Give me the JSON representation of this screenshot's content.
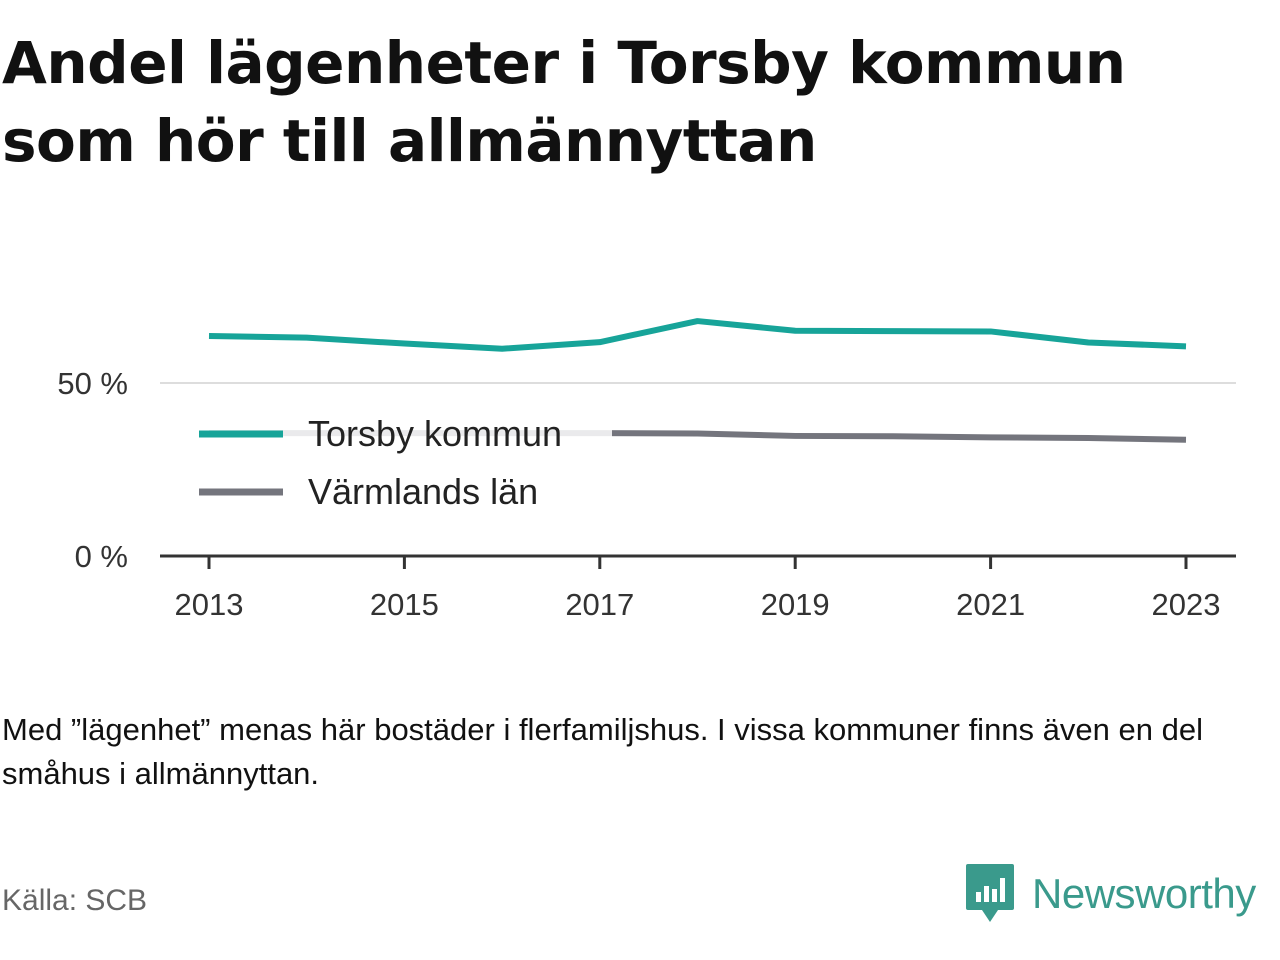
{
  "title": "Andel lägenheter i Torsby kommun som hör till allmännyttan",
  "note": "Med ”lägenhet” menas här bostäder i flerfamiljshus. I vissa kommuner finns även en del småhus i allmännyttan.",
  "source": "Källa: SCB",
  "brand": {
    "name": "Newsworthy",
    "color": "#3a9a8c",
    "icon": "newsworthy-logo-icon"
  },
  "chart_data": {
    "type": "line",
    "x": [
      2013,
      2014,
      2015,
      2016,
      2017,
      2018,
      2019,
      2020,
      2021,
      2022,
      2023
    ],
    "xticks": [
      2013,
      2015,
      2017,
      2019,
      2021,
      2023
    ],
    "yticks": [
      0,
      50
    ],
    "ytick_labels": [
      "0 %",
      "50 %"
    ],
    "ylim": [
      0,
      70
    ],
    "grid": true,
    "legend_position": "left, inside plot",
    "series": [
      {
        "name": "Torsby kommun",
        "color": "#17a499",
        "values": [
          63.6,
          63.1,
          61.4,
          59.9,
          61.8,
          67.9,
          65.1,
          65.0,
          64.9,
          61.7,
          60.6
        ]
      },
      {
        "name": "Värmlands län",
        "color": "#74757d",
        "values": [
          35.5,
          35.5,
          35.5,
          35.5,
          35.5,
          35.4,
          34.7,
          34.6,
          34.3,
          34.1,
          33.6
        ]
      }
    ]
  }
}
